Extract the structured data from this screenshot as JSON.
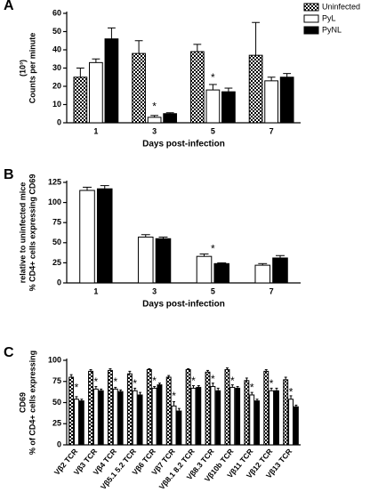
{
  "chart_data": [
    {
      "type": "bar",
      "panel": "A",
      "ylabel": [
        "Counts per minute",
        "(10³)"
      ],
      "xlabel": "Days post-infection",
      "categories": [
        "1",
        "3",
        "5",
        "7"
      ],
      "ylim": [
        0,
        60
      ],
      "yticks": [
        0,
        10,
        20,
        30,
        40,
        50,
        60
      ],
      "legend": "top-right",
      "series": [
        {
          "name": "Uninfected",
          "color": "#000000",
          "pattern": "checker",
          "values": [
            25,
            38,
            39,
            37
          ],
          "errors": [
            5,
            7,
            4,
            18
          ]
        },
        {
          "name": "PyL",
          "color": "#ffffff",
          "values": [
            33,
            3,
            18,
            23
          ],
          "errors": [
            2,
            1,
            3,
            2
          ]
        },
        {
          "name": "PyNL",
          "color": "#000000",
          "values": [
            46,
            5,
            17,
            25
          ],
          "errors": [
            6,
            0.5,
            2,
            2
          ]
        }
      ],
      "annotations": [
        {
          "text": "*",
          "category": "3",
          "y": 10
        },
        {
          "text": "*",
          "category": "5",
          "y": 26
        }
      ]
    },
    {
      "type": "bar",
      "panel": "B",
      "ylabel": [
        "% CD4+ cells expressing CD69",
        "relative to uninfected mice"
      ],
      "xlabel": "Days post-infection",
      "categories": [
        "1",
        "3",
        "5",
        "7"
      ],
      "ylim": [
        0,
        125
      ],
      "yticks": [
        0,
        25,
        50,
        75,
        100,
        125
      ],
      "series": [
        {
          "name": "PyL",
          "color": "#ffffff",
          "values": [
            115,
            57,
            33,
            22
          ],
          "errors": [
            4,
            3,
            3,
            2
          ]
        },
        {
          "name": "PyNL",
          "color": "#000000",
          "values": [
            117,
            55,
            24,
            31
          ],
          "errors": [
            4,
            2,
            1,
            3
          ]
        }
      ],
      "annotations": [
        {
          "text": "*",
          "category": "5",
          "y": 45
        }
      ]
    },
    {
      "type": "bar",
      "panel": "C",
      "ylabel": [
        "% of CD4+ cells expressing",
        "CD69"
      ],
      "categories": [
        "Vβ2 TCR",
        "Vβ3 TCR",
        "Vβ4 TCR",
        "Vβ5.1 5.2 TCR",
        "Vβ6 TCR",
        "Vβ7 TCR",
        "Vβ8.1 8.2 TCR",
        "Vβ8.3 TCR",
        "Vβ10b TCR",
        "Vβ11 TCR",
        "Vβ12 TCR",
        "Vβ13 TCR"
      ],
      "ylim": [
        0,
        100
      ],
      "yticks": [
        0,
        25,
        50,
        75,
        100
      ],
      "series": [
        {
          "name": "Uninfected",
          "color": "#000000",
          "pattern": "checker",
          "values": [
            80,
            87,
            88,
            84,
            89,
            80,
            89,
            86,
            89,
            76,
            87,
            77
          ],
          "errors": [
            3,
            2,
            2,
            3,
            1,
            2,
            1,
            2,
            2,
            3,
            2,
            3
          ]
        },
        {
          "name": "PyL",
          "color": "#ffffff",
          "values": [
            54,
            66,
            66,
            64,
            67,
            46,
            67,
            69,
            68,
            59,
            64,
            54
          ],
          "errors": [
            3,
            3,
            2,
            3,
            2,
            5,
            3,
            4,
            3,
            3,
            3,
            4
          ]
        },
        {
          "name": "PyNL",
          "color": "#000000",
          "values": [
            52,
            64,
            63,
            59,
            71,
            40,
            68,
            64,
            67,
            52,
            64,
            45
          ],
          "errors": [
            2,
            2,
            2,
            3,
            2,
            3,
            2,
            3,
            2,
            2,
            3,
            2
          ]
        }
      ],
      "annotations": [
        {
          "text": "*",
          "category": "Vβ2 TCR",
          "y": 70
        },
        {
          "text": "*",
          "category": "Vβ3 TCR",
          "y": 77
        },
        {
          "text": "*",
          "category": "Vβ4 TCR",
          "y": 77
        },
        {
          "text": "*",
          "category": "Vβ5.1 5.2 TCR",
          "y": 75
        },
        {
          "text": "*",
          "category": "Vβ6 TCR",
          "y": 78
        },
        {
          "text": "*",
          "category": "Vβ7 TCR",
          "y": 60
        },
        {
          "text": "*",
          "category": "Vβ8.1 8.2 TCR",
          "y": 78
        },
        {
          "text": "*",
          "category": "Vβ8.3 TCR",
          "y": 80
        },
        {
          "text": "*",
          "category": "Vβ10b TCR",
          "y": 78
        },
        {
          "text": "*",
          "category": "Vβ11 TCR",
          "y": 70
        },
        {
          "text": "*",
          "category": "Vβ12 TCR",
          "y": 75
        },
        {
          "text": "*",
          "category": "Vβ13 TCR",
          "y": 65
        }
      ]
    }
  ]
}
